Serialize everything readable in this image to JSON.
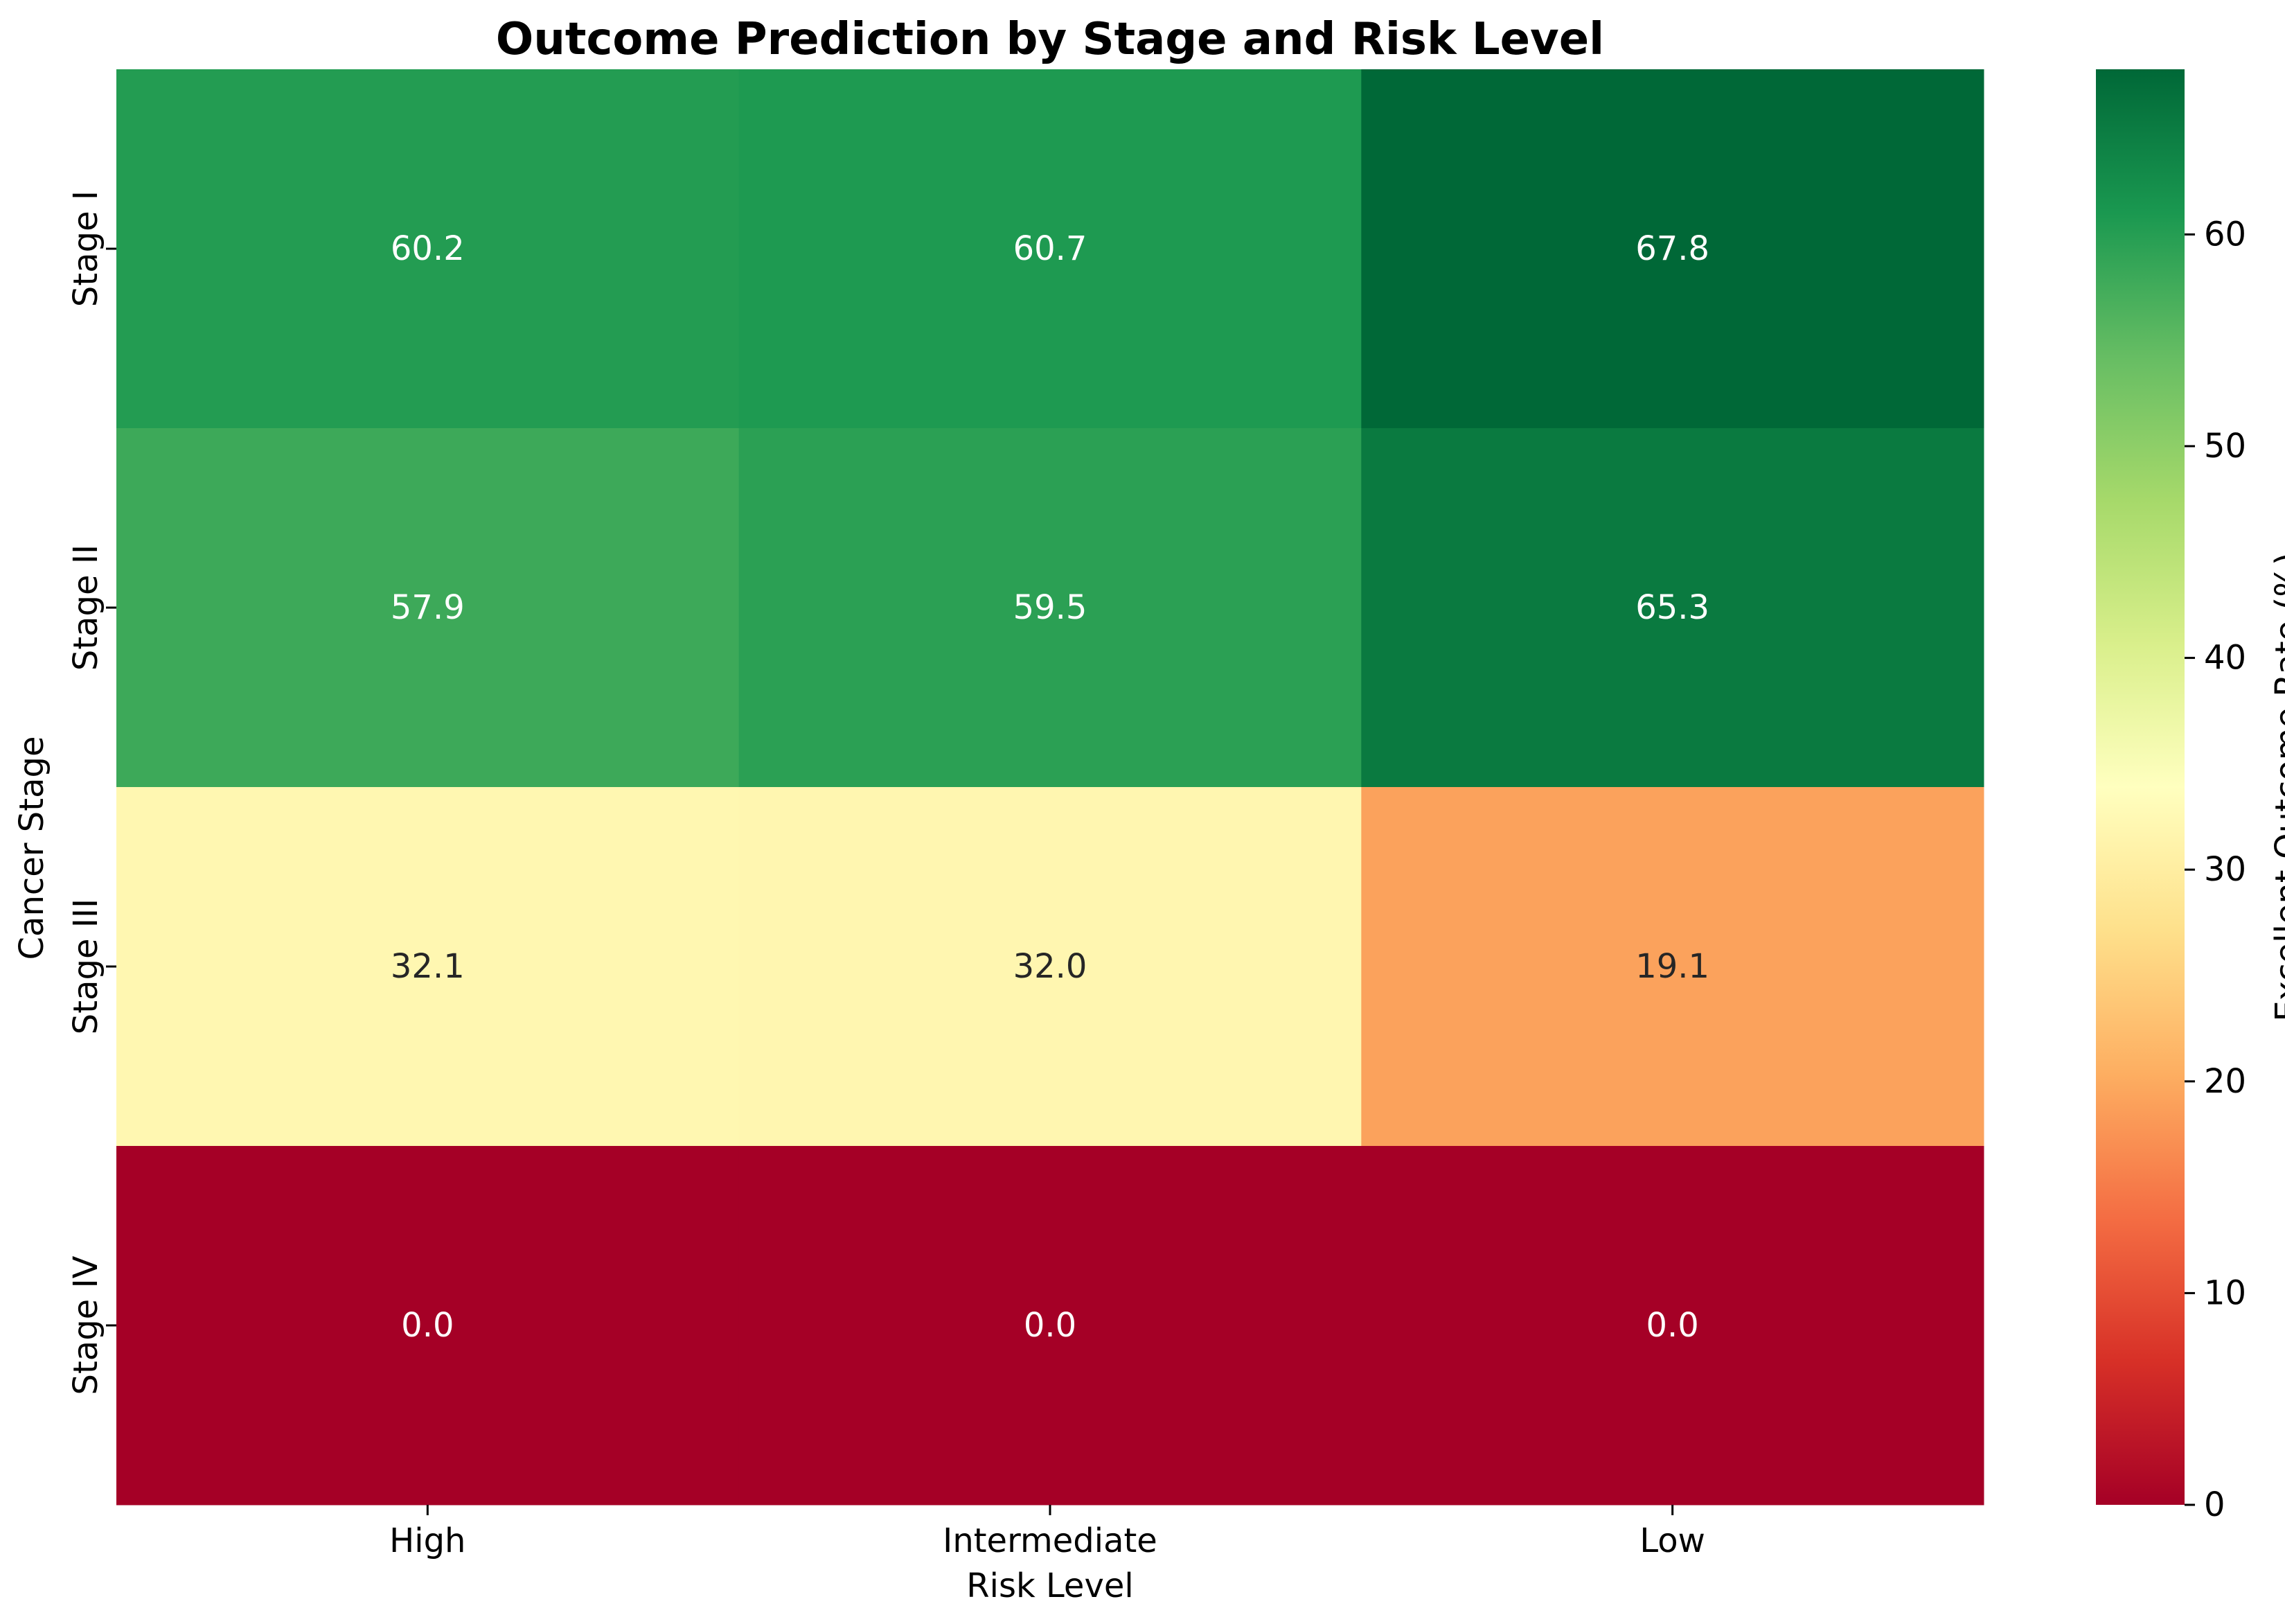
{
  "chart_data": {
    "type": "heatmap",
    "title": "Outcome Prediction by Stage and Risk Level",
    "xlabel": "Risk Level",
    "ylabel": "Cancer Stage",
    "x_categories": [
      "High",
      "Intermediate",
      "Low"
    ],
    "y_categories": [
      "Stage I",
      "Stage II",
      "Stage III",
      "Stage IV"
    ],
    "values": [
      [
        60.2,
        60.7,
        67.8
      ],
      [
        57.9,
        59.5,
        65.3
      ],
      [
        32.1,
        32.0,
        19.1
      ],
      [
        0.0,
        0.0,
        0.0
      ]
    ],
    "value_labels": [
      [
        "60.2",
        "60.7",
        "67.8"
      ],
      [
        "57.9",
        "59.5",
        "65.3"
      ],
      [
        "32.1",
        "32.0",
        "19.1"
      ],
      [
        "0.0",
        "0.0",
        "0.0"
      ]
    ],
    "colormap": "RdYlGn",
    "vmin": 0,
    "vmax": 67.8,
    "colorbar": {
      "label": "Excellent Outcome Rate (%)",
      "ticks": [
        0,
        10,
        20,
        30,
        40,
        50,
        60
      ],
      "tick_labels": [
        "0",
        "10",
        "20",
        "30",
        "40",
        "50",
        "60"
      ]
    },
    "grid": false,
    "legend": "colorbar-right"
  }
}
